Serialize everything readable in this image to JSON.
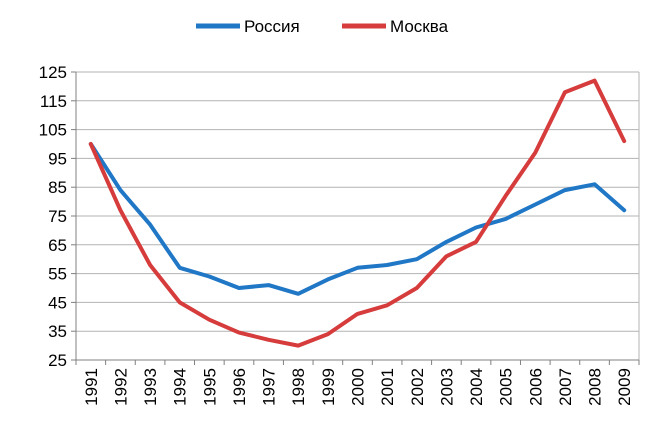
{
  "chart_data": {
    "type": "line",
    "categories": [
      "1991",
      "1992",
      "1993",
      "1994",
      "1995",
      "1996",
      "1997",
      "1998",
      "1999",
      "2000",
      "2001",
      "2002",
      "2003",
      "2004",
      "2005",
      "2006",
      "2007",
      "2008",
      "2009"
    ],
    "series": [
      {
        "name": "Россия",
        "color": "#1f77c6",
        "values": [
          100,
          84,
          72,
          57,
          54,
          50,
          51,
          48,
          53,
          57,
          58,
          60,
          66,
          71,
          74,
          79,
          84,
          86,
          77
        ]
      },
      {
        "name": "Москва",
        "color": "#d63c3c",
        "values": [
          100,
          77,
          58,
          45,
          39,
          34.5,
          32,
          30,
          34,
          41,
          44,
          50,
          61,
          66,
          82,
          97,
          118,
          122,
          101
        ]
      }
    ],
    "yticks": [
      25,
      35,
      45,
      55,
      65,
      75,
      85,
      95,
      105,
      115,
      125
    ],
    "ylim": [
      25,
      125
    ],
    "grid": true,
    "legend_position": "top"
  }
}
